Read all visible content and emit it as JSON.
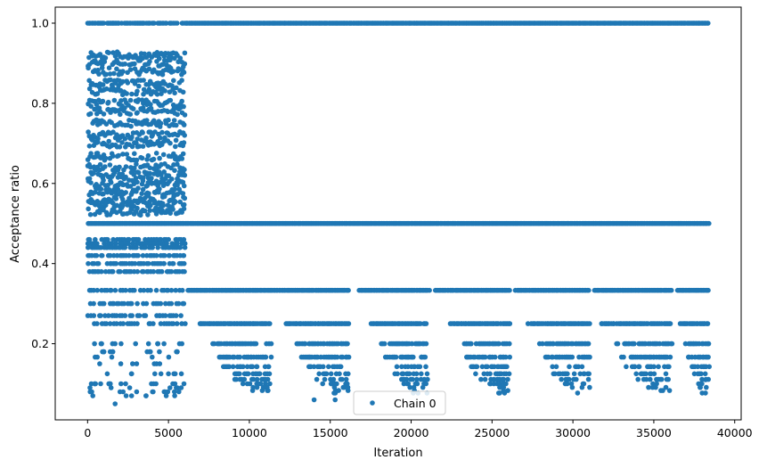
{
  "chart_data": {
    "type": "scatter",
    "xlabel": "Iteration",
    "ylabel": "Acceptance ratio",
    "xlim": [
      -2000,
      40400
    ],
    "ylim": [
      0.01,
      1.04
    ],
    "x_ticks": [
      0,
      5000,
      10000,
      15000,
      20000,
      25000,
      30000,
      35000,
      40000
    ],
    "x_tick_labels": [
      "0",
      "5000",
      "10000",
      "15000",
      "20000",
      "25000",
      "30000",
      "35000",
      "40000"
    ],
    "y_ticks": [
      0.2,
      0.4,
      0.6,
      0.8,
      1.0
    ],
    "y_tick_labels": [
      "0.2",
      "0.4",
      "0.6",
      "0.8",
      "1.0"
    ],
    "grid": false,
    "legend": {
      "placement": "bottom-center",
      "entries": [
        "Chain 0"
      ]
    },
    "series": [
      {
        "name": "Chain 0",
        "color": "#1f77b4",
        "marker": "circle",
        "description_points": "Approximately 38,400 iterations; dense horizontal bands of acceptance ratios",
        "bands": [
          {
            "y": 1.0,
            "x_range": [
              0,
              38400
            ]
          },
          {
            "y": 0.5,
            "x_range": [
              0,
              38400
            ]
          },
          {
            "y": 0.3333,
            "x_range": [
              0,
              38400
            ]
          },
          {
            "y": 0.25,
            "x_range": [
              0,
              38400
            ]
          },
          {
            "y": 0.2,
            "x_range": [
              0,
              38400
            ]
          },
          {
            "y": 0.1667,
            "x_range": [
              0,
              38400
            ]
          },
          {
            "y": 0.1429,
            "x_range": [
              0,
              38400
            ]
          },
          {
            "y": 0.125,
            "x_range": [
              0,
              38400
            ]
          },
          {
            "y": 0.1111,
            "x_range": [
              0,
              38400
            ]
          },
          {
            "y": 0.1,
            "x_range": [
              0,
              38400
            ]
          },
          {
            "y": 0.9,
            "x_range": [
              0,
              6000
            ]
          },
          {
            "y": 0.75,
            "x_range": [
              0,
              6000
            ]
          },
          {
            "y": 0.6667,
            "x_range": [
              0,
              6000
            ]
          },
          {
            "y": 0.6,
            "x_range": [
              0,
              6000
            ]
          },
          {
            "y": 0.55,
            "x_range": [
              0,
              6000
            ]
          },
          {
            "y": 0.45,
            "x_range": [
              0,
              6000
            ]
          },
          {
            "y": 0.4,
            "x_range": [
              0,
              6000
            ]
          }
        ],
        "segments_after_6000": [
          [
            6900,
            11300
          ],
          [
            12200,
            16100
          ],
          [
            17500,
            21000
          ],
          [
            22400,
            26100
          ],
          [
            27200,
            31000
          ],
          [
            31700,
            36100
          ],
          [
            36600,
            38400
          ]
        ]
      }
    ]
  }
}
